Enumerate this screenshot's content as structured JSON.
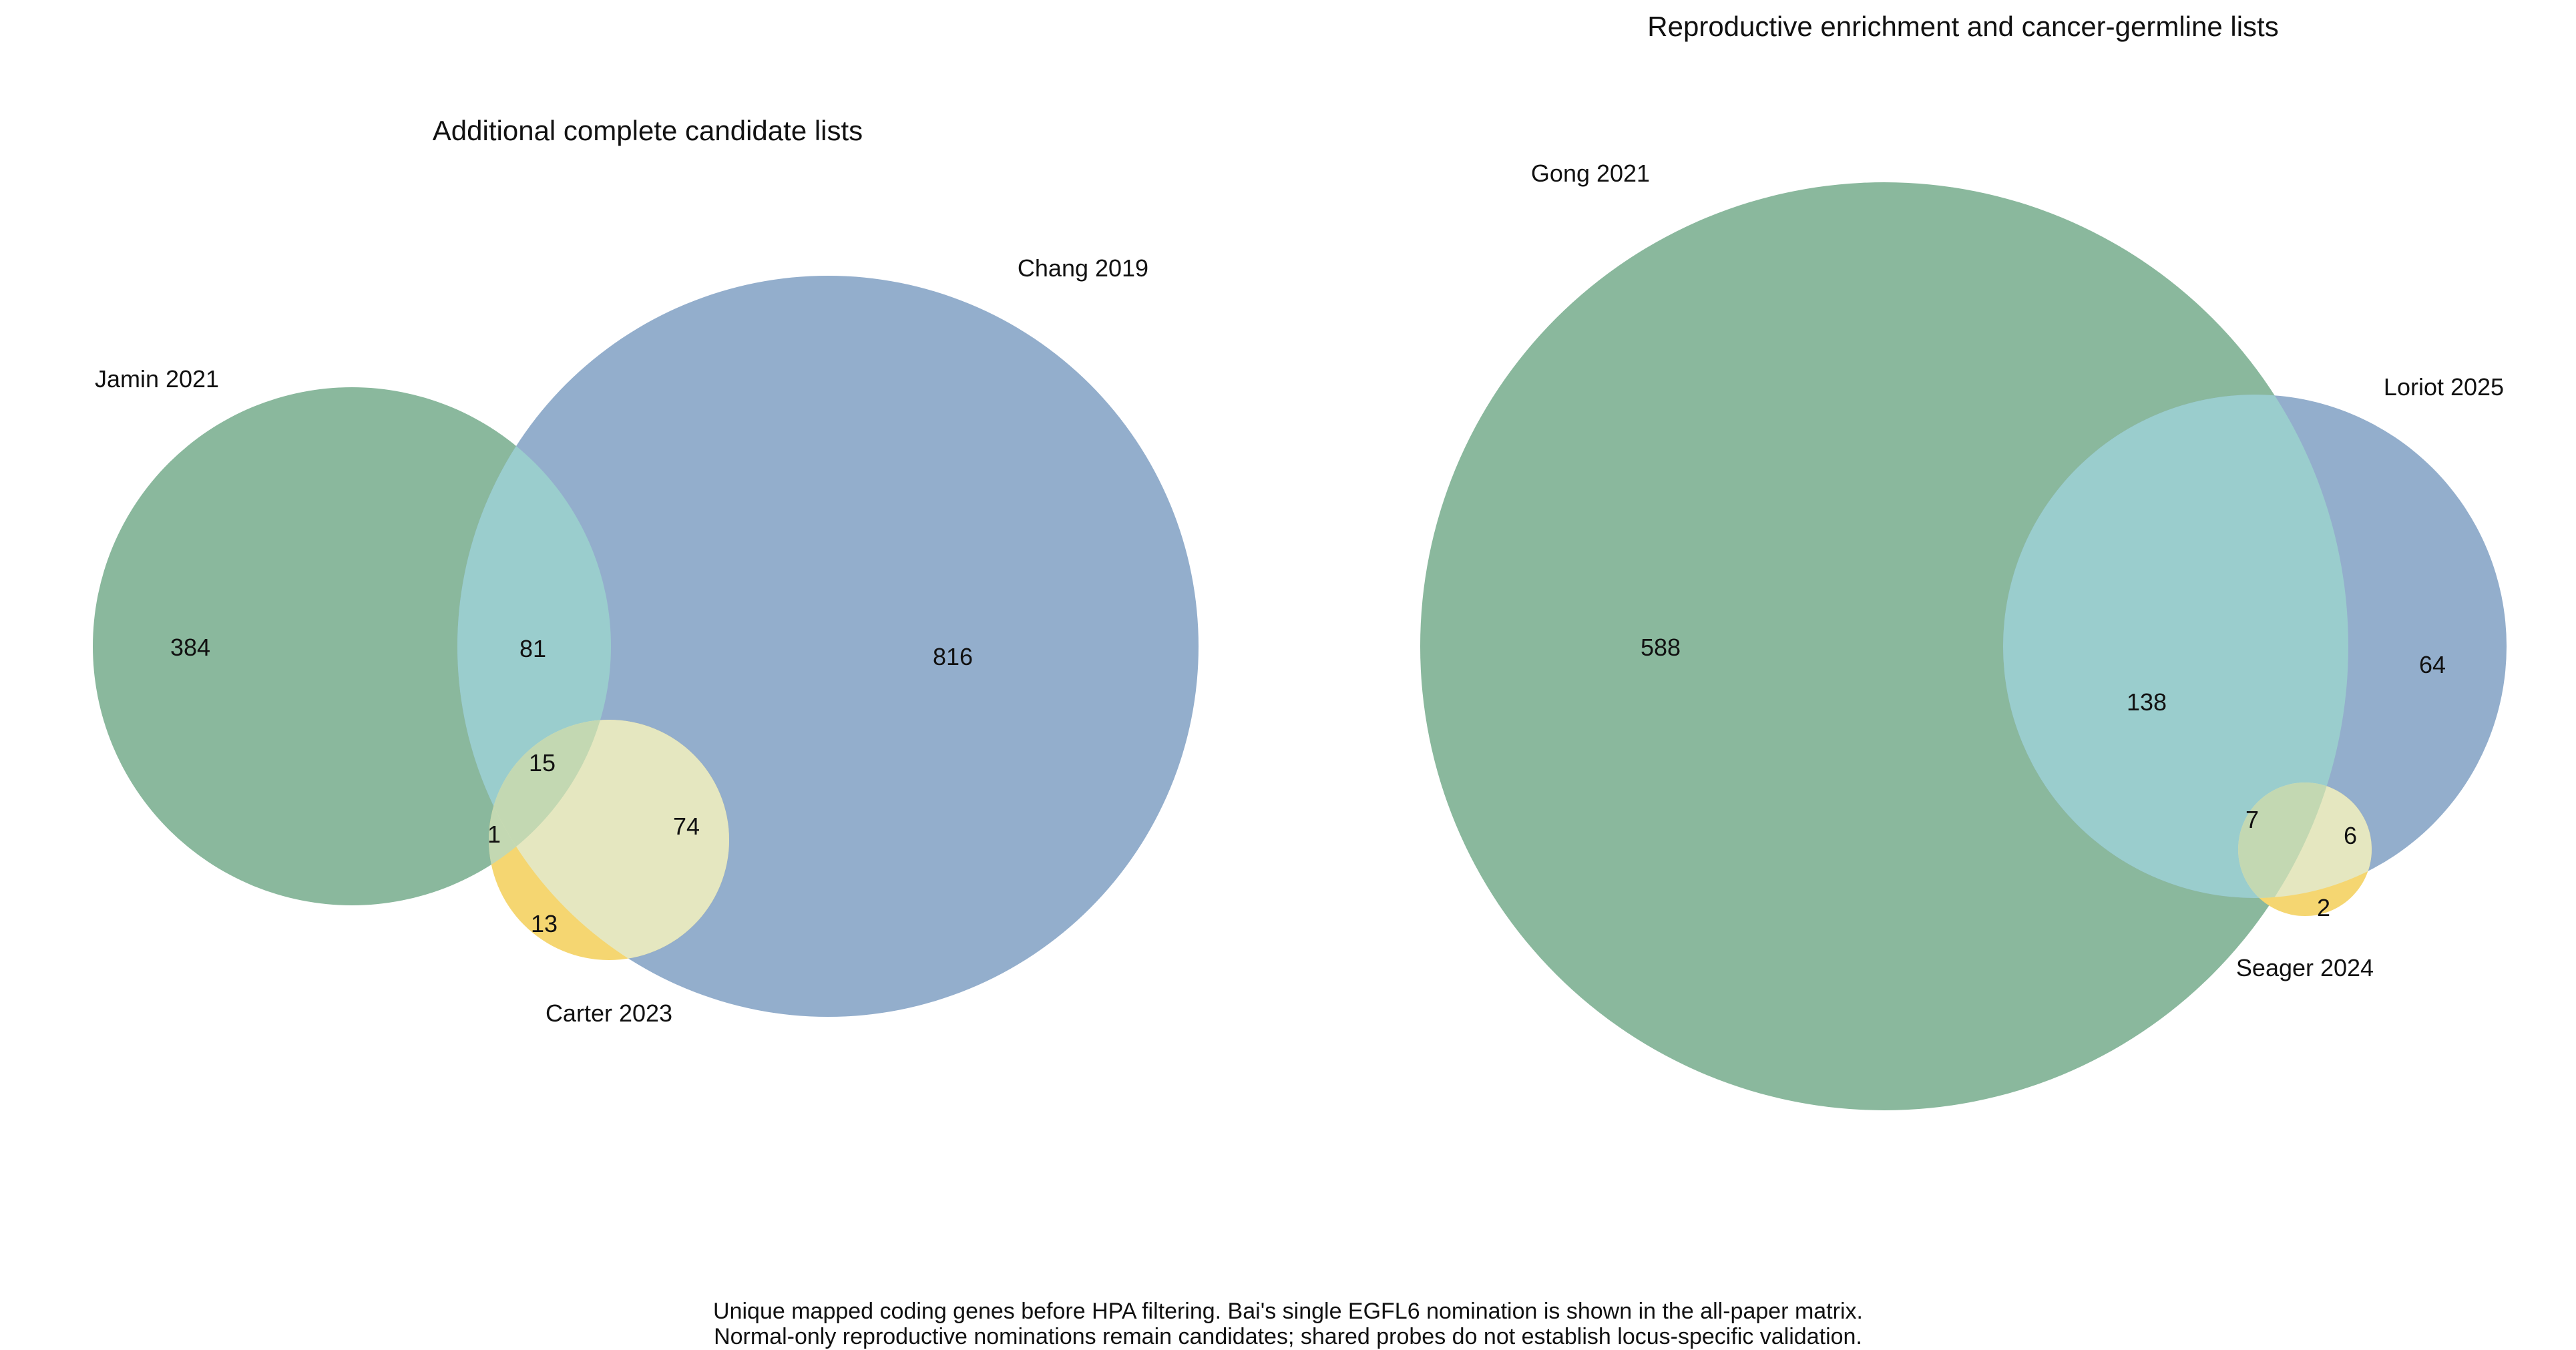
{
  "colors": {
    "set_green": "#8ab89d",
    "set_blue": "#93aecc",
    "set_yellow": "#f5d671",
    "overlap_green_blue": "#9acdcd",
    "overlap_green_yellow": "#c3d8b2",
    "overlap_blue_yellow": "#e5e7c0",
    "overlap_all": "#c3d8b2",
    "text": "#111111"
  },
  "chart_data": [
    {
      "type": "venn",
      "title": "Additional complete candidate lists",
      "sets": [
        "Jamin 2021",
        "Chang 2019",
        "Carter 2023"
      ],
      "regions": [
        {
          "sets": [
            "Jamin 2021"
          ],
          "value": "384"
        },
        {
          "sets": [
            "Chang 2019"
          ],
          "value": "816"
        },
        {
          "sets": [
            "Jamin 2021",
            "Chang 2019"
          ],
          "value": "81"
        },
        {
          "sets": [
            "Jamin 2021",
            "Chang 2019",
            "Carter 2023"
          ],
          "value": "15"
        },
        {
          "sets": [
            "Jamin 2021",
            "Carter 2023"
          ],
          "value": "1"
        },
        {
          "sets": [
            "Chang 2019",
            "Carter 2023"
          ],
          "value": "74"
        },
        {
          "sets": [
            "Carter 2023"
          ],
          "value": "13"
        }
      ]
    },
    {
      "type": "venn",
      "title": "Reproductive enrichment and cancer-germline lists",
      "sets": [
        "Gong 2021",
        "Loriot 2025",
        "Seager 2024"
      ],
      "regions": [
        {
          "sets": [
            "Gong 2021"
          ],
          "value": "588"
        },
        {
          "sets": [
            "Gong 2021",
            "Loriot 2025"
          ],
          "value": "138"
        },
        {
          "sets": [
            "Loriot 2025"
          ],
          "value": "64"
        },
        {
          "sets": [
            "Gong 2021",
            "Loriot 2025",
            "Seager 2024"
          ],
          "value": "7"
        },
        {
          "sets": [
            "Loriot 2025",
            "Seager 2024"
          ],
          "value": "6"
        },
        {
          "sets": [
            "Seager 2024"
          ],
          "value": "2"
        }
      ]
    }
  ],
  "caption": {
    "line1": "Unique mapped coding genes before HPA filtering. Bai's single EGFL6 nomination is shown in the all-paper matrix.",
    "line2": "Normal-only reproductive nominations remain candidates; shared probes do not establish locus-specific validation."
  }
}
